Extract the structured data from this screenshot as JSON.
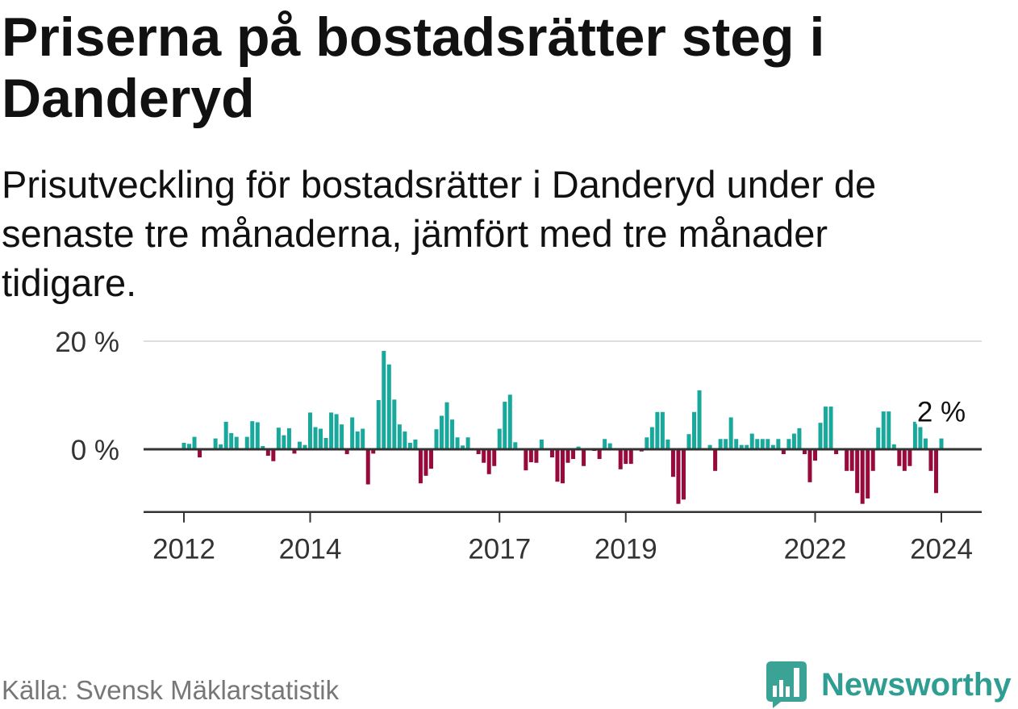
{
  "chart_data": {
    "type": "bar",
    "title": "Priserna på bostadsrätter steg i Danderyd",
    "subtitle": "Prisutveckling för bostadsrätter i Danderyd under de senaste tre månaderna, jämfört med tre månader tidigare.",
    "x_start_year": 2012,
    "x_start_month": 1,
    "values": [
      1.2,
      1.0,
      2.3,
      -1.5,
      0.1,
      0.1,
      2.0,
      0.9,
      5.1,
      3.0,
      2.3,
      0.1,
      2.3,
      5.2,
      5.0,
      0.6,
      -1.2,
      -2.2,
      4.0,
      2.6,
      3.9,
      -0.8,
      1.4,
      0.8,
      6.8,
      4.1,
      3.8,
      2.1,
      6.8,
      6.5,
      4.6,
      -0.9,
      5.9,
      3.3,
      3.8,
      -6.5,
      -0.8,
      9.1,
      18.2,
      15.7,
      9.2,
      4.6,
      3.3,
      1.2,
      1.8,
      -6.3,
      -4.9,
      -3.6,
      3.7,
      6.2,
      8.7,
      5.5,
      2.2,
      0.7,
      2.2,
      0.1,
      -0.9,
      -2.5,
      -4.6,
      -3.1,
      3.8,
      8.8,
      10.1,
      1.3,
      0.1,
      -3.9,
      -2.4,
      -2.5,
      1.8,
      0.1,
      -1.5,
      -6.0,
      -6.3,
      -2.5,
      -1.8,
      0.5,
      -3.1,
      0.1,
      -0.3,
      -1.8,
      1.9,
      1.1,
      0.1,
      -3.7,
      -2.7,
      -2.7,
      0.1,
      -0.4,
      2.2,
      4.1,
      6.9,
      6.9,
      1.8,
      -5.1,
      -10.1,
      -9.3,
      2.8,
      6.9,
      10.9,
      0.1,
      0.8,
      -4.0,
      1.9,
      1.9,
      5.9,
      1.9,
      0.8,
      0.8,
      2.9,
      1.9,
      1.9,
      1.9,
      0.8,
      1.9,
      -0.9,
      1.9,
      2.9,
      3.9,
      -0.9,
      -6.1,
      -2.1,
      4.9,
      7.9,
      7.9,
      -0.9,
      0.1,
      -4.0,
      -4.0,
      -8.1,
      -10.1,
      -9.1,
      -4.0,
      4.0,
      7.0,
      7.0,
      0.9,
      -3.1,
      -4.0,
      -3.1,
      5.1,
      4.1,
      2.0,
      -4.0,
      -8.1,
      2.0
    ],
    "ylim": [
      -11.6,
      20
    ],
    "grid": true,
    "yticks": [
      {
        "value": 20,
        "label": "20 %"
      },
      {
        "value": 0,
        "label": "0 %"
      }
    ],
    "xticks": [
      {
        "value": 2012,
        "label": "2012"
      },
      {
        "value": 2014,
        "label": "2014"
      },
      {
        "value": 2017,
        "label": "2017"
      },
      {
        "value": 2019,
        "label": "2019"
      },
      {
        "value": 2022,
        "label": "2022"
      },
      {
        "value": 2024,
        "label": "2024"
      }
    ],
    "annotation": {
      "label": "2 %",
      "value": 2.0
    },
    "colors": {
      "positive": "#19a89c",
      "negative": "#990a3c",
      "axis": "#333333",
      "grid": "#dddddd",
      "text": "#333333"
    }
  },
  "footer": {
    "source": "Källa: Svensk Mäklarstatistik"
  },
  "brand": {
    "name": "Newsworthy",
    "icon": "newsworthy-logo-icon",
    "color": "#3aa396"
  }
}
